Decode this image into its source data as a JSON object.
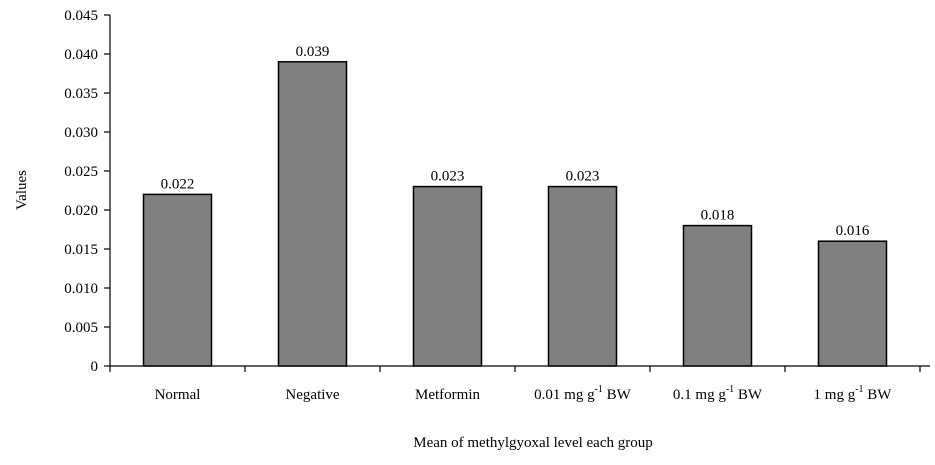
{
  "chart_data": {
    "type": "bar",
    "categories": [
      "Normal",
      "Negative",
      "Metformin",
      "0.01 mg g-1 BW",
      "0.1 mg g-1 BW",
      "1 mg g-1 BW"
    ],
    "category_labels": [
      {
        "base": "Normal",
        "sup": "",
        "tail": ""
      },
      {
        "base": "Negative",
        "sup": "",
        "tail": ""
      },
      {
        "base": "Metformin",
        "sup": "",
        "tail": ""
      },
      {
        "base": "0.01 mg g",
        "sup": "-1",
        "tail": " BW"
      },
      {
        "base": "0.1 mg g",
        "sup": "-1",
        "tail": " BW"
      },
      {
        "base": "1 mg g",
        "sup": "-1",
        "tail": " BW"
      }
    ],
    "values": [
      0.022,
      0.039,
      0.023,
      0.023,
      0.018,
      0.016
    ],
    "data_labels": [
      "0.022",
      "0.039",
      "0.023",
      "0.023",
      "0.018",
      "0.016"
    ],
    "ylim": [
      0,
      0.045
    ],
    "yticks": [
      0,
      0.005,
      0.01,
      0.015,
      0.02,
      0.025,
      0.03,
      0.035,
      0.04,
      0.045
    ],
    "ytick_labels": [
      "0",
      "0.005",
      "0.010",
      "0.015",
      "0.020",
      "0.025",
      "0.030",
      "0.035",
      "0.040",
      "0.045"
    ],
    "xlabel": "Mean of methylgyoxal level each group",
    "ylabel": "Values",
    "grid": false,
    "bar_color": "#808080",
    "bar_edge_color": "#000000"
  }
}
